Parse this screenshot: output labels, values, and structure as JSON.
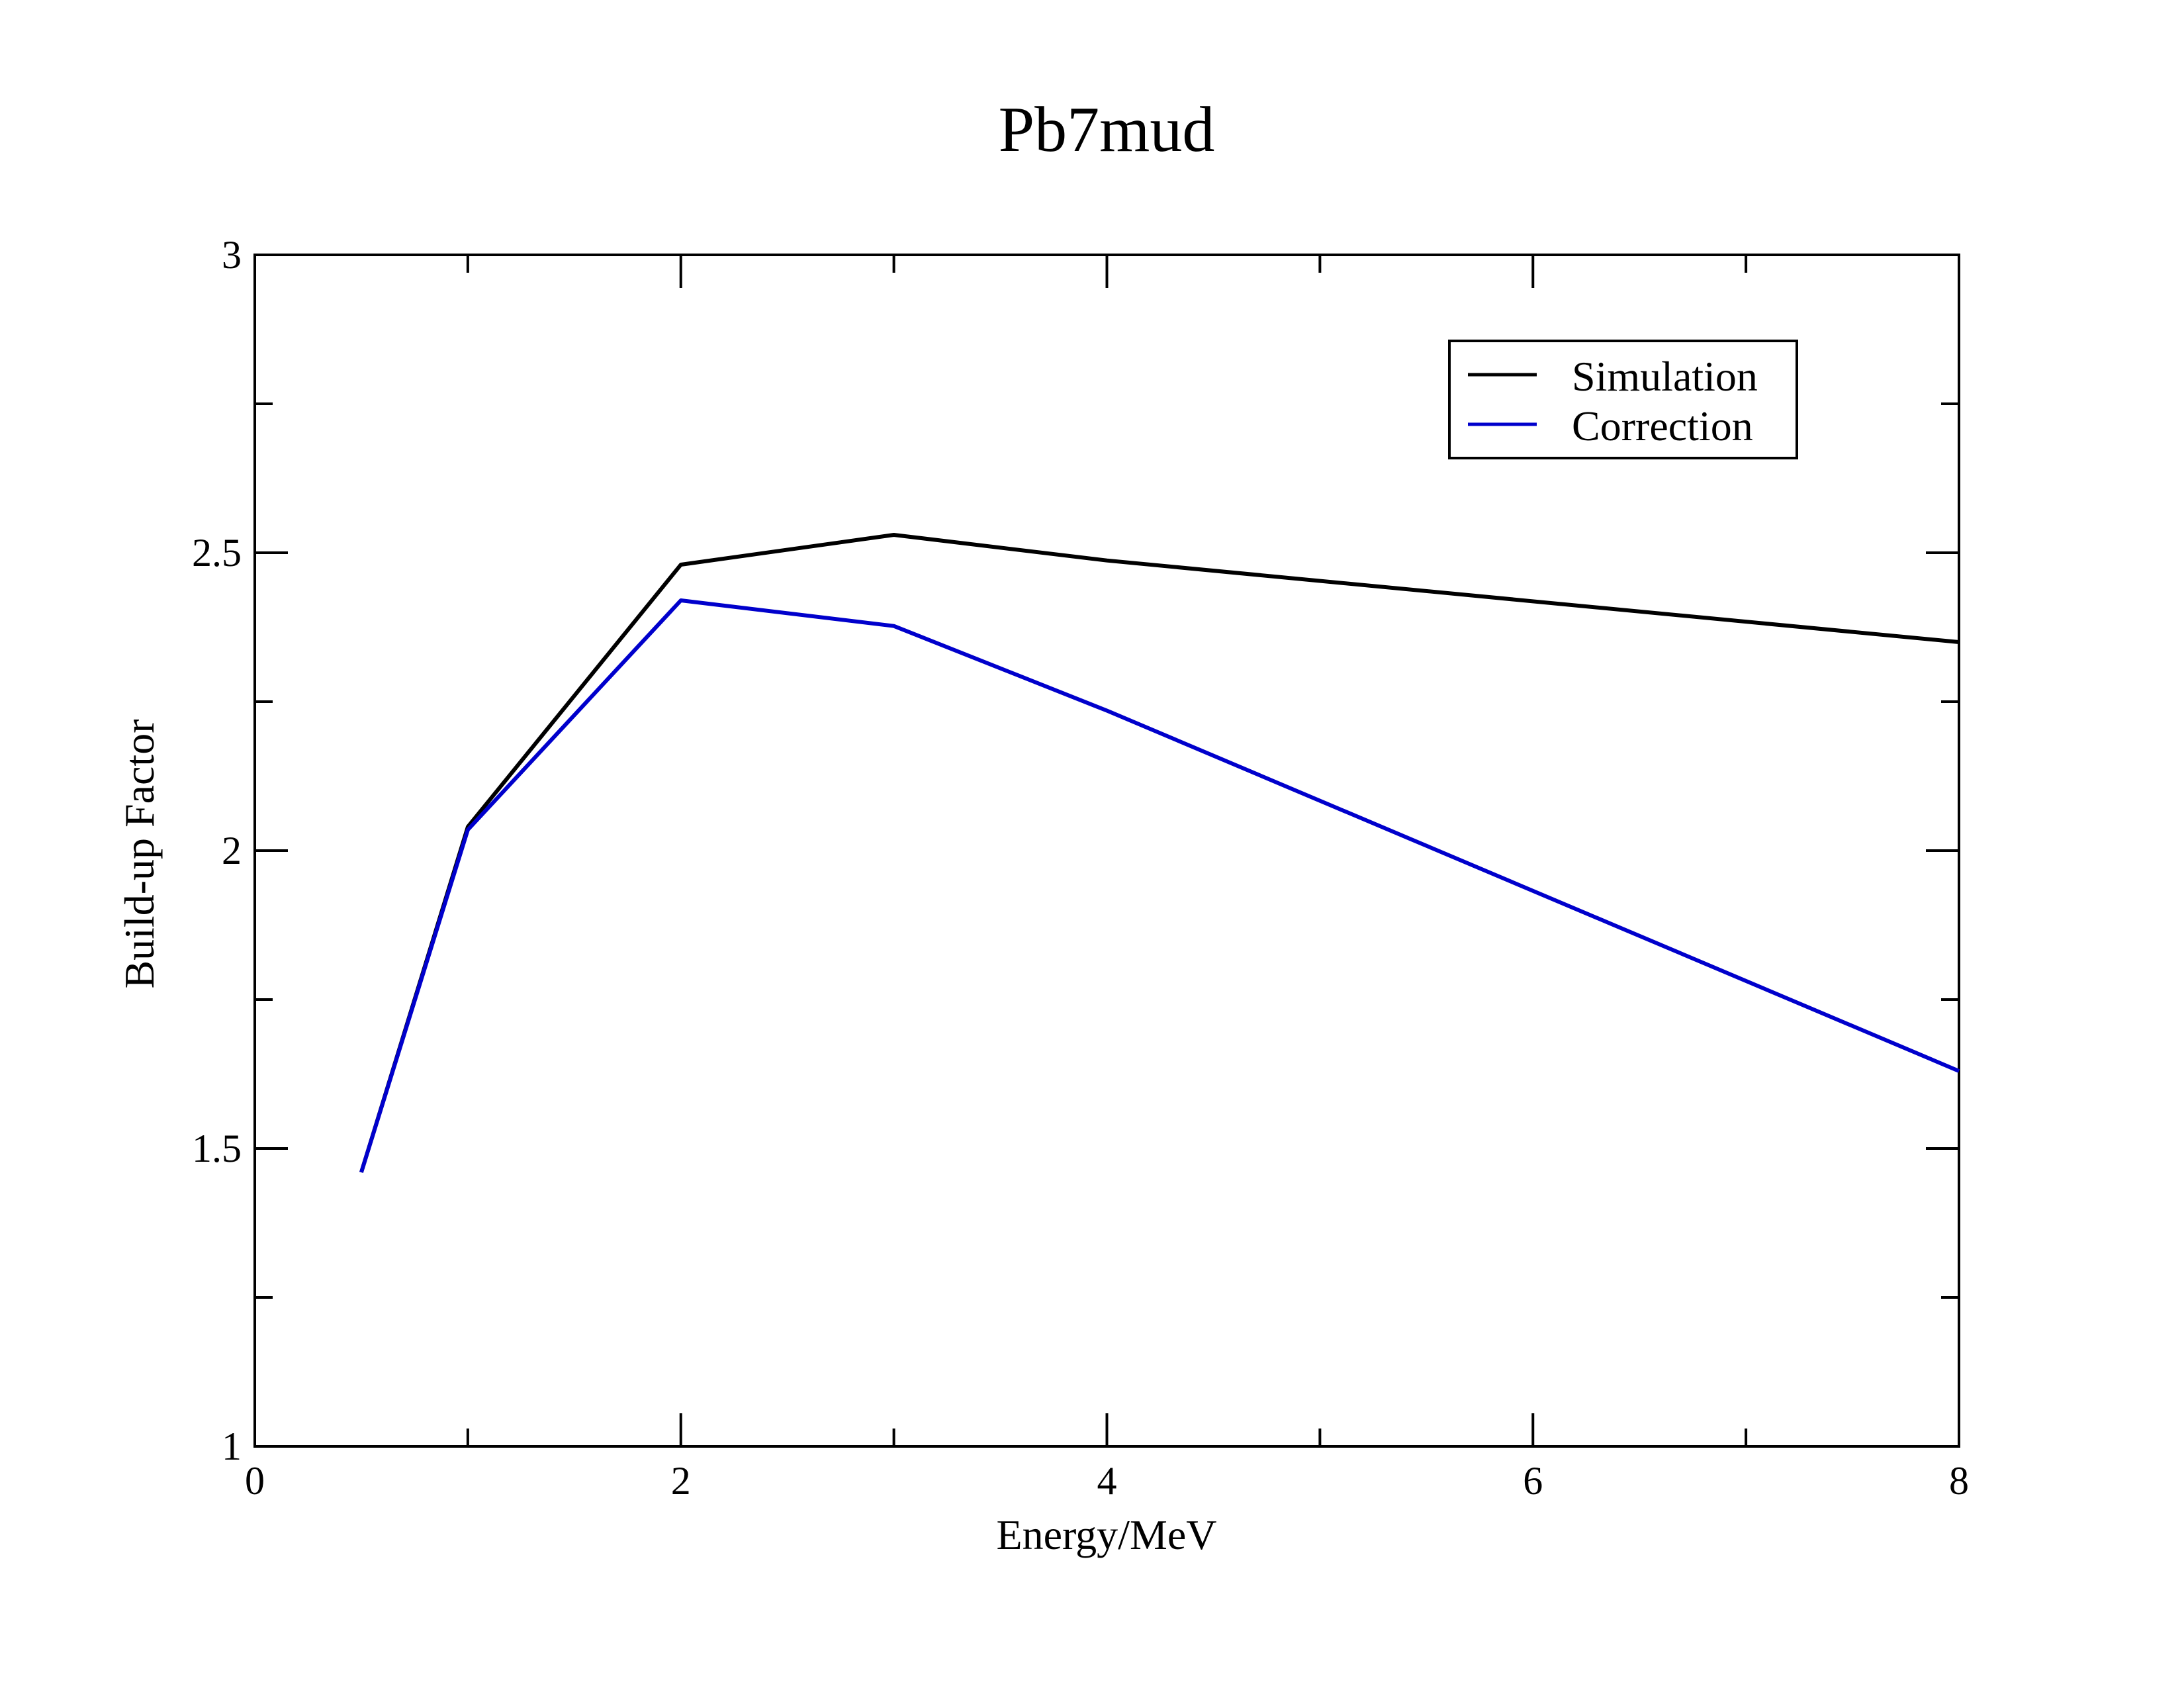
{
  "chart_data": {
    "type": "line",
    "title": "Pb7mud",
    "xlabel": "Energy/MeV",
    "ylabel": "Build-up Factor",
    "xlim": [
      0,
      8
    ],
    "ylim": [
      1,
      3
    ],
    "x_ticks": [
      0,
      2,
      4,
      6,
      8
    ],
    "x_tick_labels": [
      "0",
      "2",
      "4",
      "6",
      "8"
    ],
    "x_minor_ticks": [
      1,
      3,
      5,
      7
    ],
    "y_ticks": [
      1,
      1.5,
      2,
      2.5,
      3
    ],
    "y_tick_labels": [
      "1",
      "1.5",
      "2",
      "2.5",
      "3"
    ],
    "y_minor_ticks": [
      1.25,
      1.75,
      2.25,
      2.75
    ],
    "grid": false,
    "legend_position": "top-right",
    "series": [
      {
        "name": "Simulation",
        "color": "#000000",
        "x": [
          0.5,
          1,
          2,
          3,
          4,
          8
        ],
        "y": [
          1.46,
          2.04,
          2.48,
          2.53,
          2.487,
          2.35
        ]
      },
      {
        "name": "Correction",
        "color": "#0000cc",
        "x": [
          0.5,
          1,
          2,
          3,
          4,
          8
        ],
        "y": [
          1.46,
          2.035,
          2.42,
          2.377,
          2.235,
          1.63
        ]
      }
    ]
  }
}
